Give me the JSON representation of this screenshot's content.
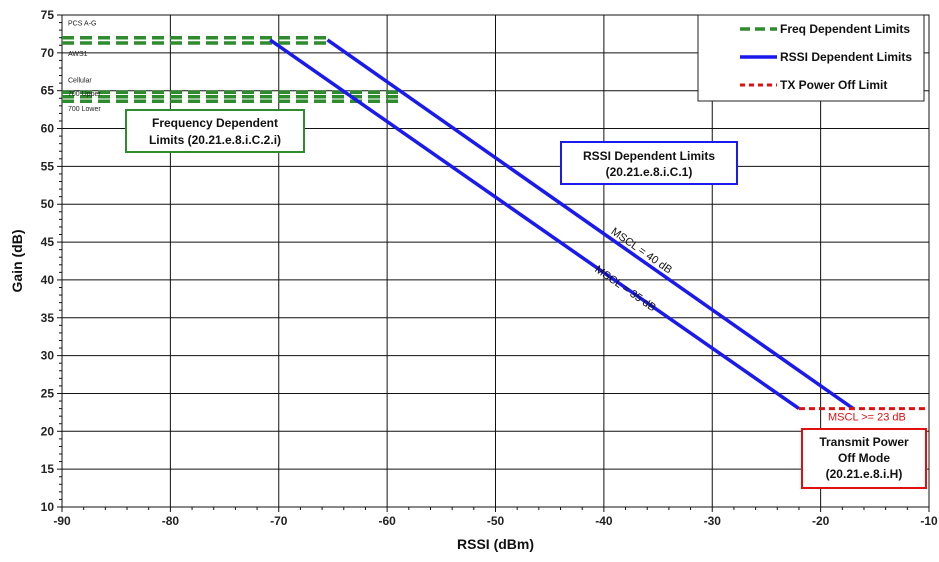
{
  "chart_data": {
    "type": "line",
    "xlabel": "RSSI (dBm)",
    "ylabel": "Gain (dB)",
    "xlim": [
      -90,
      -10
    ],
    "ylim": [
      10,
      75
    ],
    "x_ticks": [
      -90,
      -80,
      -70,
      -60,
      -50,
      -40,
      -30,
      -20,
      -10
    ],
    "y_ticks": [
      10,
      15,
      20,
      25,
      30,
      35,
      40,
      45,
      50,
      55,
      60,
      65,
      70,
      75
    ],
    "grid": true,
    "legend_position": "top-right",
    "legend": [
      {
        "label": "Freq Dependent Limits",
        "color": "#2e8b2e",
        "style": "dashed-green"
      },
      {
        "label": "RSSI Dependent Limits",
        "color": "#1a1aee",
        "style": "solid-blue"
      },
      {
        "label": "TX Power Off Limit",
        "color": "#e01010",
        "style": "dotted-red"
      }
    ],
    "series": [
      {
        "kind": "freq",
        "label": "PCS A-G",
        "points": [
          [
            -90,
            72.0
          ],
          [
            -65.5,
            72.0
          ]
        ]
      },
      {
        "kind": "freq",
        "label": "AWS1",
        "points": [
          [
            -90,
            71.3
          ],
          [
            -65.5,
            71.3
          ]
        ]
      },
      {
        "kind": "freq",
        "label": "Cellular",
        "points": [
          [
            -90,
            64.8
          ],
          [
            -58.5,
            64.8
          ]
        ]
      },
      {
        "kind": "freq",
        "label": "700 Upper",
        "points": [
          [
            -90,
            64.2
          ],
          [
            -58.5,
            64.2
          ]
        ]
      },
      {
        "kind": "freq",
        "label": "700 Lower",
        "points": [
          [
            -90,
            63.6
          ],
          [
            -58.5,
            63.6
          ]
        ]
      },
      {
        "kind": "rssi",
        "label": "MSCL = 40 dB",
        "points": [
          [
            -65.5,
            71.7
          ],
          [
            -17,
            23
          ]
        ]
      },
      {
        "kind": "rssi",
        "label": "MSCL = 35 dB",
        "points": [
          [
            -70.8,
            71.7
          ],
          [
            -22,
            23
          ]
        ]
      },
      {
        "kind": "txoff",
        "label": "MSCL >= 23 dB",
        "points": [
          [
            -22,
            23
          ],
          [
            -10,
            23
          ]
        ]
      }
    ],
    "annotations": {
      "freq_box": [
        "Frequency Dependent",
        "Limits (20.21.e.8.i.C.2.i)"
      ],
      "rssi_box": [
        "RSSI Dependent Limits",
        "(20.21.e.8.i.C.1)"
      ],
      "tx_box": [
        "Transmit Power",
        "Off Mode",
        "(20.21.e.8.i.H)"
      ]
    },
    "colors": {
      "freq": "#2e8b2e",
      "rssi": "#1a1aee",
      "txoff": "#e01010",
      "grid": "#111111"
    }
  }
}
